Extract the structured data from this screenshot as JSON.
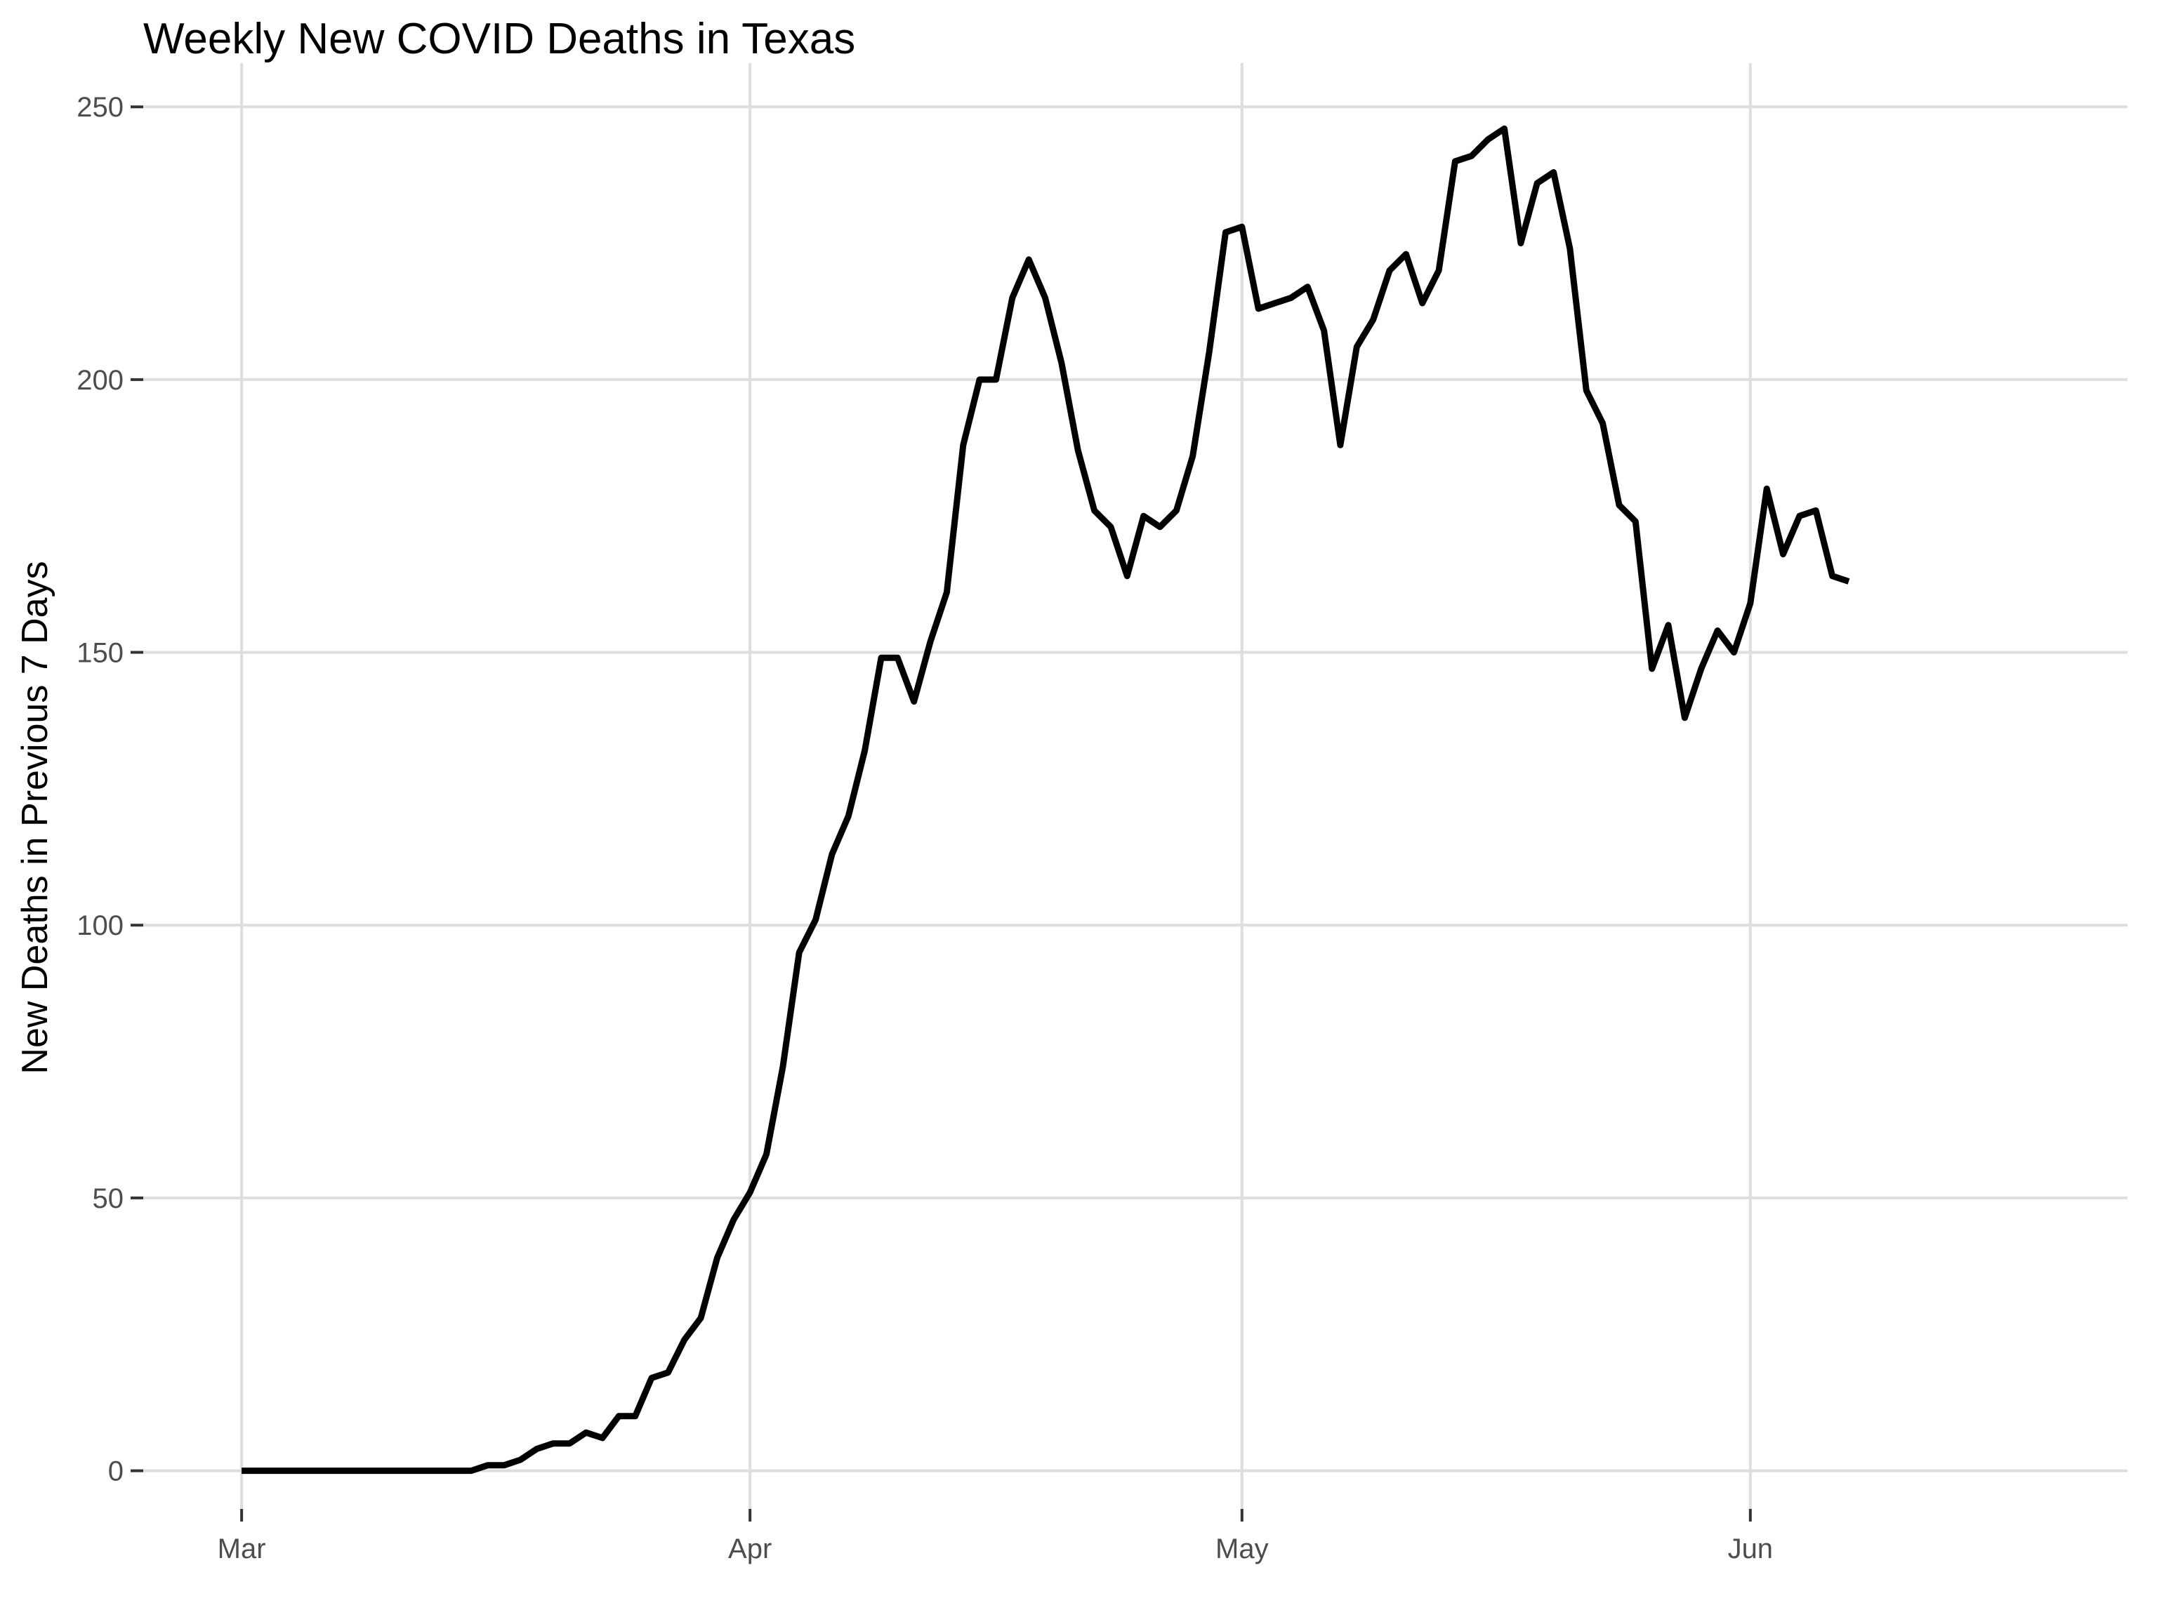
{
  "chart_data": {
    "type": "line",
    "title": "Weekly New COVID Deaths in Texas",
    "xlabel": "",
    "ylabel": "New Deaths in Previous 7 Days",
    "x_axis": {
      "type": "date",
      "range": [
        "2020-02-24",
        "2020-06-24"
      ],
      "ticks": [
        {
          "date": "2020-03-01",
          "label": "Mar"
        },
        {
          "date": "2020-04-01",
          "label": "Apr"
        },
        {
          "date": "2020-05-01",
          "label": "May"
        },
        {
          "date": "2020-06-01",
          "label": "Jun"
        }
      ]
    },
    "y_axis": {
      "range": [
        -7,
        258
      ],
      "ticks": [
        0,
        50,
        100,
        150,
        200,
        250
      ]
    },
    "grid": true,
    "legend": "none",
    "colors": {
      "series": "#000000",
      "grid": "#dedede",
      "tick_text": "#4d4d4d"
    },
    "series": [
      {
        "start_date": "2020-03-01",
        "x": [
          "2020-03-01",
          "2020-03-02",
          "2020-03-03",
          "2020-03-04",
          "2020-03-05",
          "2020-03-06",
          "2020-03-07",
          "2020-03-08",
          "2020-03-09",
          "2020-03-10",
          "2020-03-11",
          "2020-03-12",
          "2020-03-13",
          "2020-03-14",
          "2020-03-15",
          "2020-03-16",
          "2020-03-17",
          "2020-03-18",
          "2020-03-19",
          "2020-03-20",
          "2020-03-21",
          "2020-03-22",
          "2020-03-23",
          "2020-03-24",
          "2020-03-25",
          "2020-03-26",
          "2020-03-27",
          "2020-03-28",
          "2020-03-29",
          "2020-03-30",
          "2020-03-31",
          "2020-04-01",
          "2020-04-02",
          "2020-04-03",
          "2020-04-04",
          "2020-04-05",
          "2020-04-06",
          "2020-04-07",
          "2020-04-08",
          "2020-04-09",
          "2020-04-10",
          "2020-04-11",
          "2020-04-12",
          "2020-04-13",
          "2020-04-14",
          "2020-04-15",
          "2020-04-16",
          "2020-04-17",
          "2020-04-18",
          "2020-04-19",
          "2020-04-20",
          "2020-04-21",
          "2020-04-22",
          "2020-04-23",
          "2020-04-24",
          "2020-04-25",
          "2020-04-26",
          "2020-04-27",
          "2020-04-28",
          "2020-04-29",
          "2020-04-30",
          "2020-05-01",
          "2020-05-02",
          "2020-05-03",
          "2020-05-04",
          "2020-05-05",
          "2020-05-06",
          "2020-05-07",
          "2020-05-08",
          "2020-05-09",
          "2020-05-10",
          "2020-05-11",
          "2020-05-12",
          "2020-05-13",
          "2020-05-14",
          "2020-05-15",
          "2020-05-16",
          "2020-05-17",
          "2020-05-18",
          "2020-05-19",
          "2020-05-20",
          "2020-05-21",
          "2020-05-22",
          "2020-05-23",
          "2020-05-24",
          "2020-05-25",
          "2020-05-26",
          "2020-05-27",
          "2020-05-28",
          "2020-05-29",
          "2020-05-30",
          "2020-05-31",
          "2020-06-01",
          "2020-06-02",
          "2020-06-03",
          "2020-06-04",
          "2020-06-05",
          "2020-06-06",
          "2020-06-07"
        ],
        "values": [
          0,
          0,
          0,
          0,
          0,
          0,
          0,
          0,
          0,
          0,
          0,
          0,
          0,
          0,
          0,
          1,
          1,
          2,
          4,
          5,
          5,
          7,
          6,
          10,
          10,
          17,
          18,
          24,
          28,
          39,
          46,
          51,
          58,
          74,
          95,
          101,
          113,
          120,
          132,
          149,
          149,
          141,
          152,
          161,
          188,
          200,
          200,
          215,
          222,
          215,
          203,
          187,
          176,
          173,
          164,
          175,
          173,
          176,
          186,
          205,
          227,
          228,
          213,
          214,
          215,
          217,
          209,
          188,
          206,
          211,
          220,
          223,
          214,
          220,
          240,
          241,
          244,
          246,
          225,
          236,
          238,
          224,
          198,
          192,
          177,
          174,
          147,
          155,
          138,
          147,
          154,
          150,
          159,
          180,
          168,
          175,
          176,
          164,
          163
        ]
      }
    ]
  }
}
